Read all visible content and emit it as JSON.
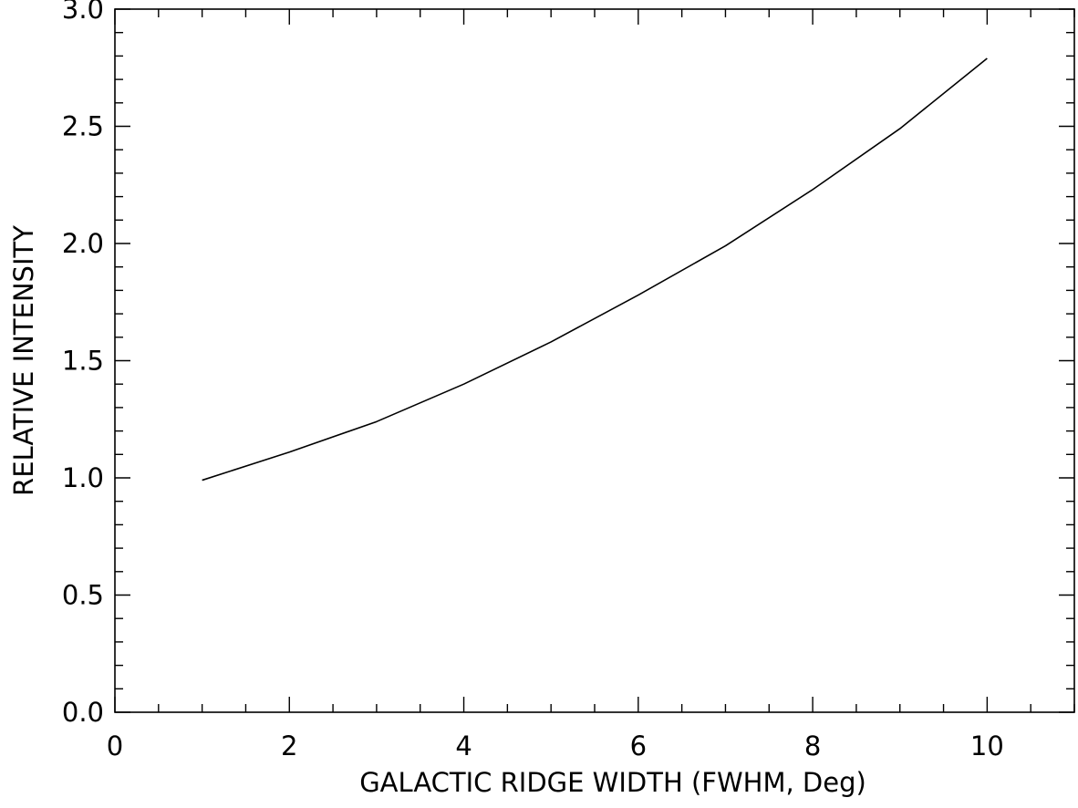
{
  "chart_data": {
    "type": "line",
    "title": "",
    "xlabel": "GALACTIC RIDGE WIDTH (FWHM, Deg)",
    "ylabel": "RELATIVE INTENSITY",
    "xlim": [
      0,
      11
    ],
    "ylim": [
      0,
      3
    ],
    "x_ticks": [
      0,
      2,
      4,
      6,
      8,
      10
    ],
    "x_tick_labels": [
      "0",
      "2",
      "4",
      "6",
      "8",
      "10"
    ],
    "x_minor_step": 0.5,
    "y_ticks": [
      0,
      0.5,
      1,
      1.5,
      2,
      2.5,
      3
    ],
    "y_tick_labels": [
      "0.0",
      "0.5",
      "1.0",
      "1.5",
      "2.0",
      "2.5",
      "3.0"
    ],
    "y_minor_step": 0.1,
    "grid": false,
    "series": [
      {
        "x": [
          1,
          2,
          3,
          4,
          5,
          6,
          7,
          8,
          9,
          10
        ],
        "y": [
          0.99,
          1.11,
          1.24,
          1.4,
          1.58,
          1.78,
          1.99,
          2.23,
          2.49,
          2.79
        ]
      }
    ],
    "line_color": "#000000"
  }
}
